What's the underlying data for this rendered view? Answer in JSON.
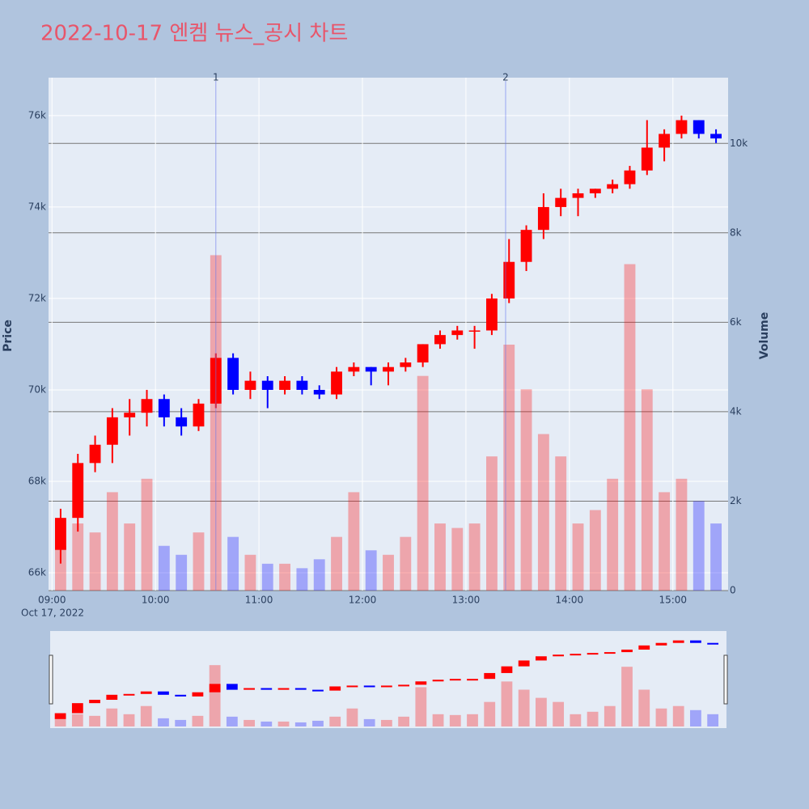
{
  "chart_data": {
    "type": "candlestick",
    "title": "2022-10-17 엔켐 뉴스_공시 차트",
    "date_label": "Oct 17, 2022",
    "y_title": "Price",
    "y2_title": "Volume",
    "x": [
      "09:00",
      "09:10",
      "09:20",
      "09:30",
      "09:40",
      "09:50",
      "10:00",
      "10:10",
      "10:20",
      "10:30",
      "10:40",
      "10:50",
      "11:00",
      "11:10",
      "11:20",
      "11:30",
      "11:40",
      "11:50",
      "12:00",
      "12:10",
      "12:20",
      "12:30",
      "12:40",
      "12:50",
      "13:00",
      "13:10",
      "13:20",
      "13:30",
      "13:40",
      "13:50",
      "14:00",
      "14:10",
      "14:20",
      "14:30",
      "14:40",
      "14:50",
      "15:00",
      "15:10",
      "15:20"
    ],
    "open": [
      66500,
      67200,
      68400,
      68800,
      69400,
      69500,
      69800,
      69400,
      69200,
      69700,
      70700,
      70000,
      70200,
      70000,
      70200,
      70000,
      69900,
      70400,
      70500,
      70400,
      70500,
      70600,
      71000,
      71200,
      71300,
      71300,
      72000,
      72800,
      73500,
      74000,
      74200,
      74300,
      74400,
      74500,
      74800,
      75300,
      75600,
      75900,
      75600
    ],
    "high": [
      67400,
      68600,
      69000,
      69600,
      69800,
      70000,
      69900,
      69600,
      69800,
      70800,
      70800,
      70400,
      70300,
      70300,
      70300,
      70100,
      70500,
      70600,
      70500,
      70600,
      70700,
      71000,
      71300,
      71400,
      71400,
      72100,
      73300,
      73600,
      74300,
      74400,
      74400,
      74400,
      74600,
      74900,
      75900,
      75700,
      76000,
      75900,
      75700
    ],
    "low": [
      66200,
      66900,
      68200,
      68400,
      69000,
      69200,
      69200,
      69000,
      69100,
      69600,
      69900,
      69800,
      69600,
      69900,
      69900,
      69800,
      69800,
      70300,
      70100,
      70100,
      70400,
      70500,
      70900,
      71100,
      70900,
      71200,
      71900,
      72600,
      73300,
      73800,
      73800,
      74200,
      74300,
      74400,
      74700,
      75000,
      75500,
      75500,
      75400
    ],
    "close": [
      67200,
      68400,
      68800,
      69400,
      69500,
      69800,
      69400,
      69200,
      69700,
      70700,
      70000,
      70200,
      70000,
      70200,
      70000,
      69900,
      70400,
      70500,
      70400,
      70500,
      70600,
      71000,
      71200,
      71300,
      71300,
      72000,
      72800,
      73500,
      74000,
      74200,
      74300,
      74400,
      74500,
      74800,
      75300,
      75600,
      75900,
      75600,
      75500
    ],
    "volume": [
      1000,
      1500,
      1300,
      2200,
      1500,
      2500,
      1000,
      800,
      1300,
      7500,
      1200,
      800,
      600,
      600,
      500,
      700,
      1200,
      2200,
      900,
      800,
      1200,
      4800,
      1500,
      1400,
      1500,
      3000,
      5500,
      4500,
      3500,
      3000,
      1500,
      1800,
      2500,
      7300,
      4500,
      2200,
      2500,
      2000,
      1500
    ],
    "increasing_color": "#ff0000",
    "decreasing_color": "#0000ff",
    "xlim": [
      "08:58",
      "15:32"
    ],
    "xticks": [
      "09:00",
      "10:00",
      "11:00",
      "12:00",
      "13:00",
      "14:00",
      "15:00"
    ],
    "ylim": [
      65610,
      76830
    ],
    "yticks": [
      {
        "value": 66000,
        "label": "66k"
      },
      {
        "value": 68000,
        "label": "68k"
      },
      {
        "value": 70000,
        "label": "70k"
      },
      {
        "value": 72000,
        "label": "72k"
      },
      {
        "value": 74000,
        "label": "74k"
      },
      {
        "value": 76000,
        "label": "76k"
      }
    ],
    "y2lim": [
      0,
      11470
    ],
    "y2ticks": [
      0,
      {
        "value": 2000,
        "label": "2k"
      },
      {
        "value": 4000,
        "label": "4k"
      },
      {
        "value": 6000,
        "label": "6k"
      },
      {
        "value": 8000,
        "label": "8k"
      },
      {
        "value": 10000,
        "label": "10k"
      }
    ],
    "annotations": [
      {
        "text": "1",
        "x": "10:35"
      },
      {
        "text": "2",
        "x": "13:23"
      }
    ],
    "grid": true,
    "rangeslider": true
  }
}
